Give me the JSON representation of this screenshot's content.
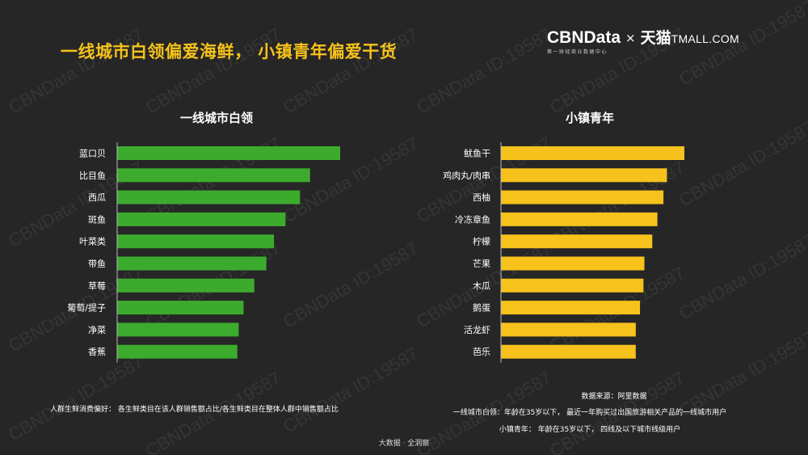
{
  "headline": "一线城市白领偏爱海鲜， 小镇青年偏爱干货",
  "brand": {
    "cbn_name": "CBNData",
    "cbn_sub": "第一财经商业数据中心",
    "times": "×",
    "tmall_cn": "天猫",
    "tmall_latin": "TMALL.COM"
  },
  "watermark": "CBNData ID:19587",
  "colors": {
    "left_bar": "#3cab2d",
    "right_bar": "#f6c21b",
    "background": "#262626",
    "headline": "#f6c21b"
  },
  "chart_data": [
    {
      "type": "bar",
      "orientation": "horizontal",
      "title": "一线城市白领",
      "categories": [
        "蓝口贝",
        "比目鱼",
        "西瓜",
        "斑鱼",
        "叶菜类",
        "带鱼",
        "草莓",
        "葡萄/提子",
        "净菜",
        "香蕉"
      ],
      "values": [
        100,
        86.5,
        82,
        75.5,
        70.3,
        66.9,
        61.5,
        56.7,
        54.5,
        53.9
      ],
      "xlim": [
        0,
        100
      ],
      "grid": false,
      "color": "#3cab2d"
    },
    {
      "type": "bar",
      "orientation": "horizontal",
      "title": "小镇青年",
      "categories": [
        "鱿鱼干",
        "鸡肉丸/肉串",
        "西柚",
        "冷冻章鱼",
        "柠檬",
        "芒果",
        "木瓜",
        "鹅蛋",
        "活龙虾",
        "芭乐"
      ],
      "values": [
        100,
        90.5,
        88.6,
        85.3,
        82.5,
        78.2,
        77.7,
        75.8,
        73.5,
        73.5
      ],
      "xlim": [
        0,
        100
      ],
      "grid": false,
      "color": "#f6c21b"
    }
  ],
  "footnotes": {
    "left": "人群生鲜消费偏好： 各生鲜类目在该人群销售额占比/各生鲜类目在整体人群中销售额占比",
    "source": "数据来源：阿里数据",
    "right_line1": "一线城市白领：年龄在35岁以下，  最近一年购买过出国旅游相关产品的一线城市用户",
    "right_line2": "小镇青年：  年龄在35岁以下，  四线及以下城市线级用户",
    "bottom": "大数据 · 全洞察"
  }
}
